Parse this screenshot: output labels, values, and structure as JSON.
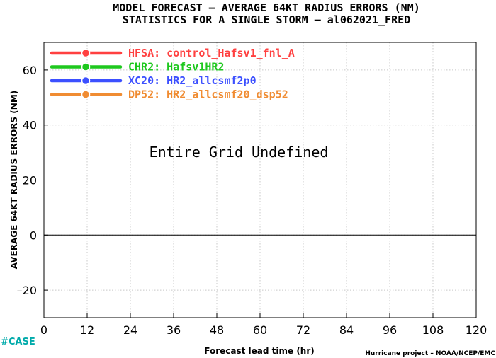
{
  "chart_data": {
    "type": "line",
    "title": "MODEL FORECAST – AVERAGE 64KT RADIUS ERRORS (NM)",
    "subtitle": "STATISTICS FOR A SINGLE STORM – al062021_FRED",
    "xlabel": "Forecast lead time (hr)",
    "ylabel": "AVERAGE 64KT RADIUS ERRORS (NM)",
    "xlim": [
      0,
      120
    ],
    "ylim": [
      -30,
      70
    ],
    "x_ticks": [
      0,
      12,
      24,
      36,
      48,
      60,
      72,
      84,
      96,
      108,
      120
    ],
    "y_ticks": [
      -20,
      0,
      20,
      40,
      60
    ],
    "y_tick_labels": [
      "–20",
      "0",
      "20",
      "40",
      "60"
    ],
    "grid": true,
    "zero_line": 0,
    "legend_position": "top-left",
    "series": [
      {
        "name": "HFSA: control_Hafsv1_fnl_A",
        "color": "#ff4040",
        "values": []
      },
      {
        "name": "CHR2: Hafsv1HR2",
        "color": "#1ec81e",
        "values": []
      },
      {
        "name": "XC20: HR2_allcsmf2p0",
        "color": "#3c50ff",
        "values": []
      },
      {
        "name": "DP52: HR2_allcsmf20_dsp52",
        "color": "#f08c32",
        "values": []
      }
    ],
    "annotation": "Entire Grid Undefined"
  },
  "footer": {
    "left_tag": "#CASE",
    "credit": "Hurricane project – NOAA/NCEP/EMC"
  }
}
